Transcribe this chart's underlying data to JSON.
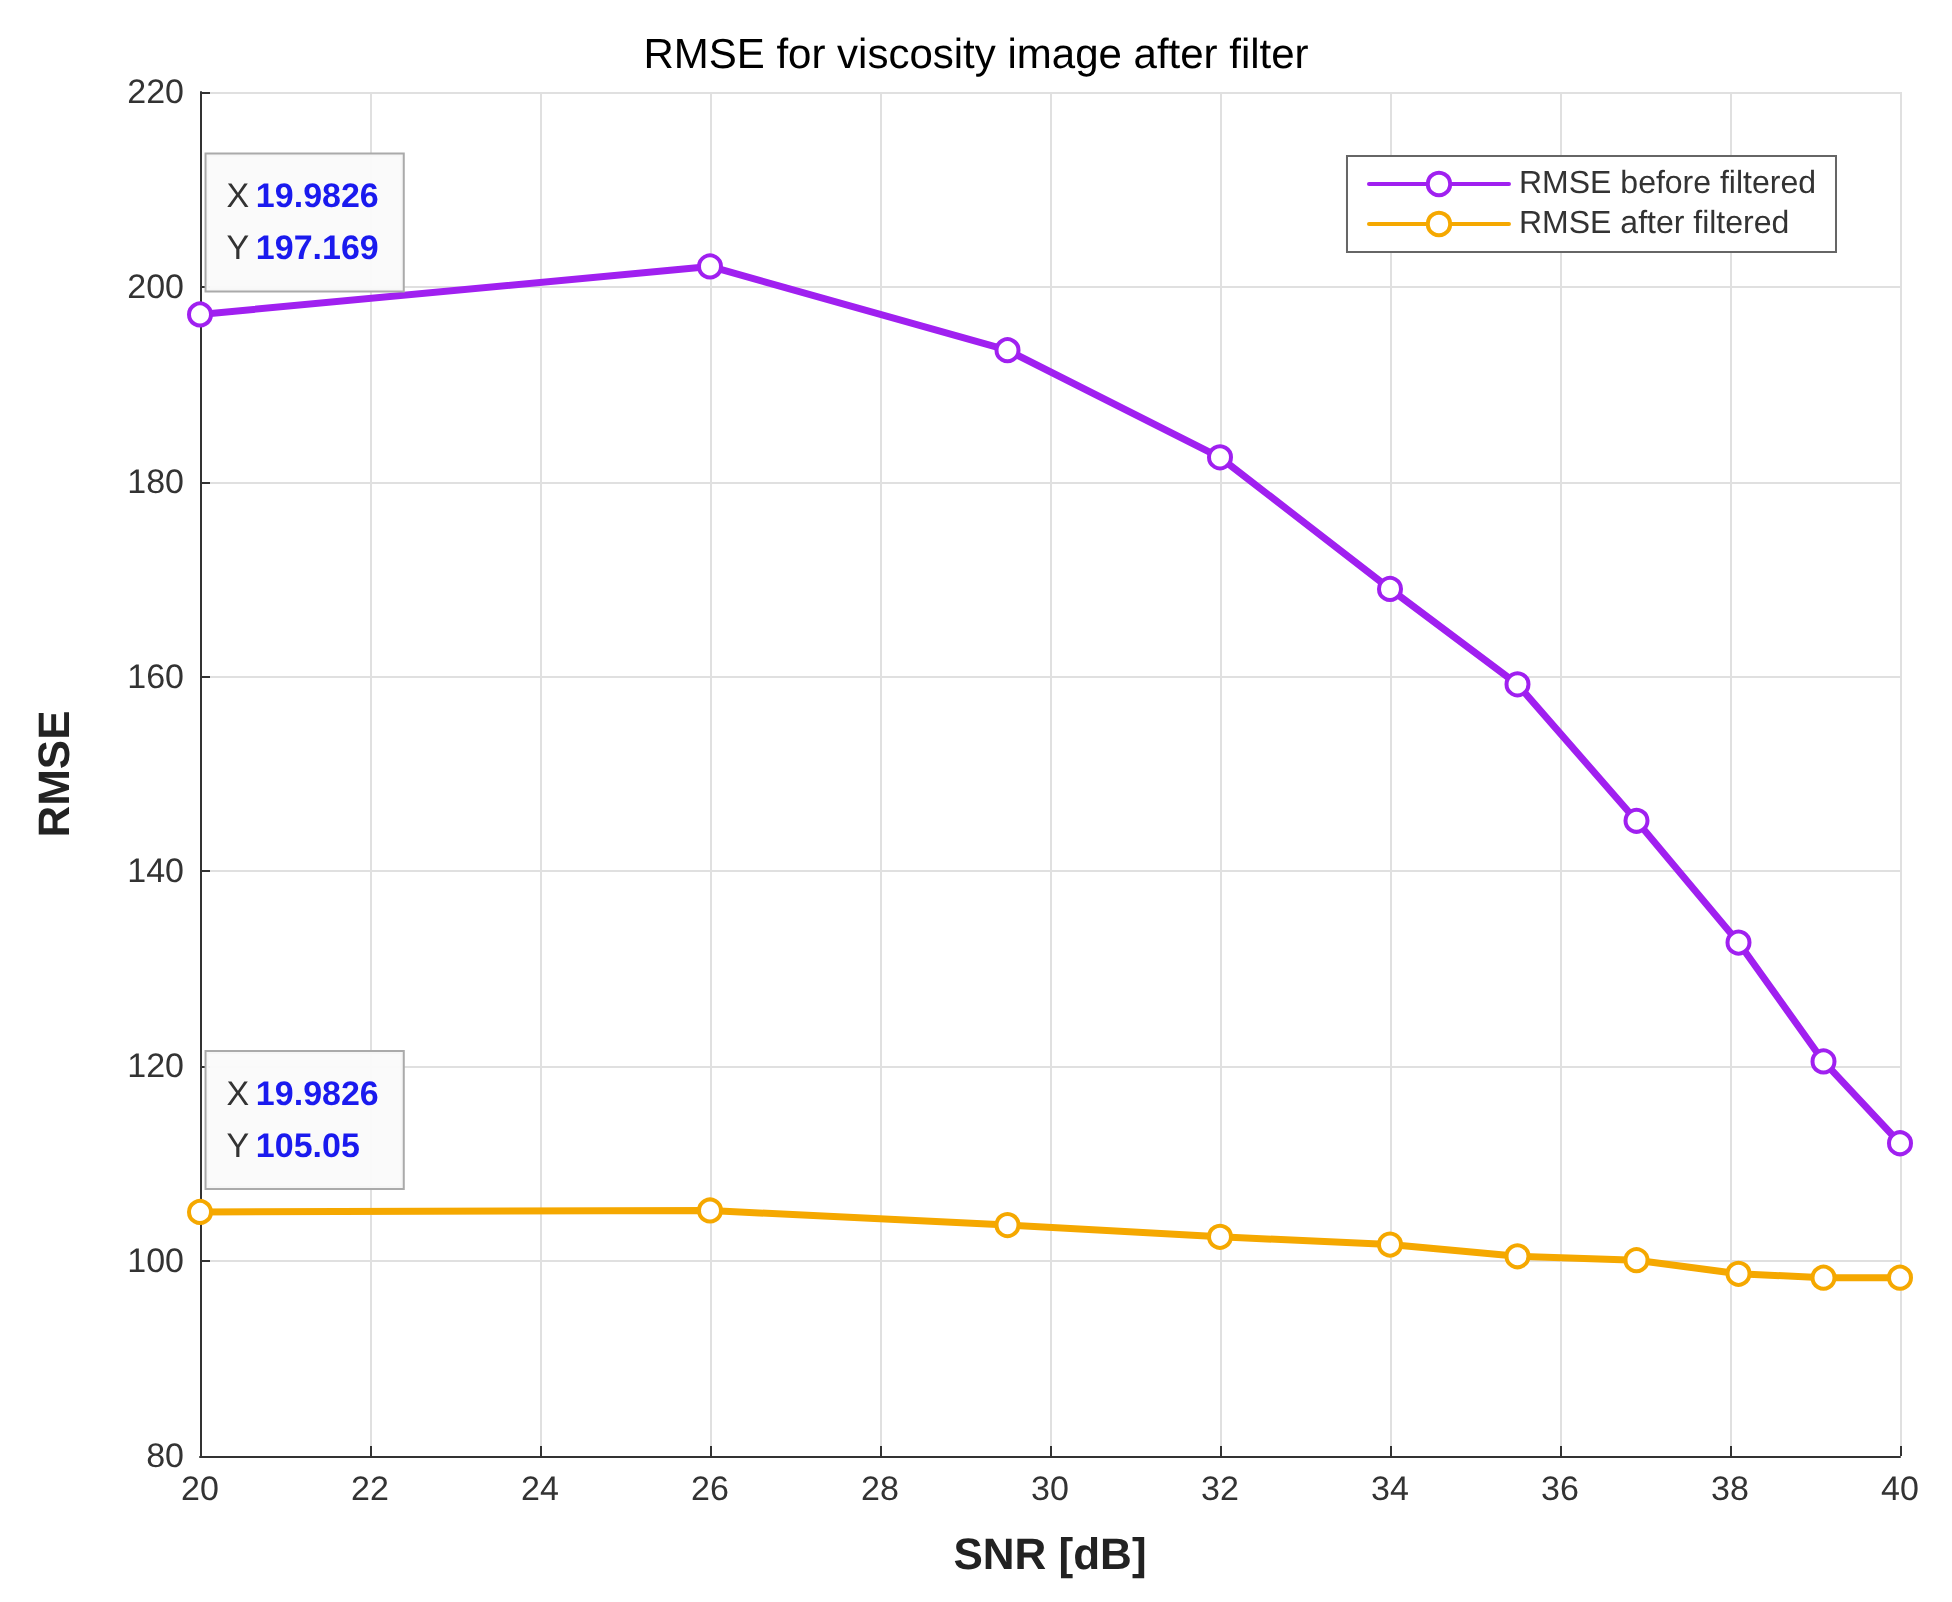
{
  "chart_data": {
    "type": "line",
    "title": "RMSE for viscosity image after filter",
    "xlabel": "SNR [dB]",
    "ylabel": "RMSE",
    "x": [
      20,
      26,
      29.5,
      32,
      34,
      35.5,
      36.9,
      38.1,
      39.1,
      40
    ],
    "series": [
      {
        "name": "RMSE before filtered",
        "color": "#a020f0",
        "values": [
          197.169,
          202.1,
          193.5,
          182.5,
          169,
          159.2,
          145.2,
          132.7,
          120.5,
          112.1
        ]
      },
      {
        "name": "RMSE after filtered",
        "color": "#f5a800",
        "values": [
          105.05,
          105.2,
          103.7,
          102.5,
          101.7,
          100.5,
          100.1,
          98.7,
          98.3,
          98.3
        ]
      }
    ],
    "annotations": [
      {
        "text": "X 19.9826\nY 197.169",
        "x": 19.9826,
        "y": 197.169
      },
      {
        "text": "X 19.9826\nY 105.05",
        "x": 19.9826,
        "y": 105.05
      }
    ],
    "xlim": [
      20,
      40
    ],
    "xticks": [
      20,
      22,
      24,
      26,
      28,
      30,
      32,
      34,
      36,
      38,
      40
    ],
    "ylim": [
      80,
      220
    ],
    "yticks": [
      80,
      100,
      120,
      140,
      160,
      180,
      200,
      220
    ],
    "grid": true,
    "legend": "top right",
    "marker": "circle",
    "line_style": "solid"
  }
}
